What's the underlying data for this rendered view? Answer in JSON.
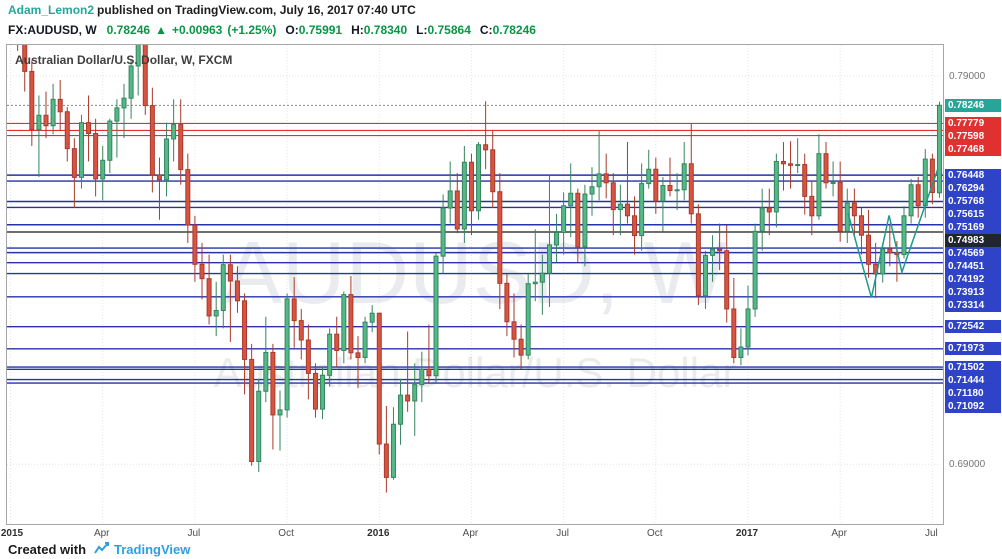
{
  "header": {
    "author": "Adam_Lemon2",
    "published_text": "published on TradingView.com, July 16, 2017 07:40 UTC"
  },
  "quote_bar": {
    "symbol": "FX:AUDUSD, W",
    "last": "0.78246",
    "change_arrow": "▲",
    "change_abs": "+0.00963",
    "change_pct": "(+1.25%)",
    "ohlc": [
      {
        "label": "O:",
        "value": "0.75991"
      },
      {
        "label": "H:",
        "value": "0.78340"
      },
      {
        "label": "L:",
        "value": "0.75864"
      },
      {
        "label": "C:",
        "value": "0.78246"
      }
    ]
  },
  "chart": {
    "title": "Australian Dollar/U.S. Dollar, W, FXCM",
    "watermark_line1": "AUDUSD, W",
    "watermark_line2": "Australian Dollar/U.S. Dollar"
  },
  "footer": {
    "created_with": "Created with",
    "brand": "TradingView"
  },
  "colors": {
    "up": "#53b987",
    "up_border": "#36845f",
    "down": "#d75442",
    "down_border": "#a93a2b",
    "level_red": "#e03030",
    "level_blue": "#2632a8",
    "level_dark": "#15191c",
    "chip_red": "#e03030",
    "chip_blue": "#2f43c8",
    "chip_dark": "#20262b",
    "chip_current": "#26a69a",
    "accent_teal": "#26a69a",
    "value_green": "#0a9446",
    "brand_blue": "#2e9fdf",
    "drawing": "#1f9a8e",
    "grid": "#e4e4e4",
    "current_line": "#888888",
    "watermark": "rgba(120,130,150,0.16)"
  },
  "chart_data": {
    "type": "candlestick",
    "symbol": "AUDUSD",
    "timeframe": "W",
    "exchange": "FXCM",
    "title": "Australian Dollar/U.S. Dollar, W, FXCM",
    "price_axis": {
      "top": 0.798,
      "bottom": 0.6746,
      "plain_ticks": [
        0.79,
        0.69
      ]
    },
    "time_ticks": [
      {
        "label": "2015",
        "index": 0,
        "major": true
      },
      {
        "label": "Apr",
        "index": 13,
        "major": false
      },
      {
        "label": "Jul",
        "index": 26,
        "major": false
      },
      {
        "label": "Oct",
        "index": 39,
        "major": false
      },
      {
        "label": "2016",
        "index": 52,
        "major": true
      },
      {
        "label": "Apr",
        "index": 65,
        "major": false
      },
      {
        "label": "Jul",
        "index": 78,
        "major": false
      },
      {
        "label": "Oct",
        "index": 91,
        "major": false
      },
      {
        "label": "2017",
        "index": 104,
        "major": true
      },
      {
        "label": "Apr",
        "index": 117,
        "major": false
      },
      {
        "label": "Jul",
        "index": 130,
        "major": false
      }
    ],
    "levels": [
      {
        "price": 0.78246,
        "kind": "current"
      },
      {
        "price": 0.77779,
        "kind": "red"
      },
      {
        "price": 0.77598,
        "kind": "red"
      },
      {
        "price": 0.77468,
        "kind": "red"
      },
      {
        "price": 0.76448,
        "kind": "blue"
      },
      {
        "price": 0.76294,
        "kind": "blue"
      },
      {
        "price": 0.75768,
        "kind": "blue"
      },
      {
        "price": 0.75615,
        "kind": "blue"
      },
      {
        "price": 0.75169,
        "kind": "blue"
      },
      {
        "price": 0.74983,
        "kind": "dark"
      },
      {
        "price": 0.74569,
        "kind": "blue"
      },
      {
        "price": 0.74451,
        "kind": "blue"
      },
      {
        "price": 0.74192,
        "kind": "blue"
      },
      {
        "price": 0.73913,
        "kind": "blue"
      },
      {
        "price": 0.73314,
        "kind": "blue"
      },
      {
        "price": 0.72542,
        "kind": "blue"
      },
      {
        "price": 0.71973,
        "kind": "blue"
      },
      {
        "price": 0.71502,
        "kind": "blue"
      },
      {
        "price": 0.71444,
        "kind": "blue"
      },
      {
        "price": 0.7118,
        "kind": "blue"
      },
      {
        "price": 0.71092,
        "kind": "blue"
      }
    ],
    "price_labels": [
      {
        "text": "0.79000",
        "price": 0.79,
        "kind": "plain"
      },
      {
        "text": "0.78246",
        "price": 0.78246,
        "kind": "current"
      },
      {
        "text": "0.77779",
        "price": 0.77779,
        "kind": "red"
      },
      {
        "text": "0.77598",
        "price": 0.77598,
        "kind": "red"
      },
      {
        "text": "0.77468",
        "price": 0.77468,
        "kind": "red"
      },
      {
        "text": "0.76448",
        "price": 0.76448,
        "kind": "blue"
      },
      {
        "text": "0.76294",
        "price": 0.76294,
        "kind": "blue"
      },
      {
        "text": "0.75768",
        "price": 0.75768,
        "kind": "blue"
      },
      {
        "text": "0.75615",
        "price": 0.75615,
        "kind": "blue"
      },
      {
        "text": "0.75169",
        "price": 0.75169,
        "kind": "blue"
      },
      {
        "text": "0.74983",
        "price": 0.74983,
        "kind": "dark"
      },
      {
        "text": "0.74569",
        "price": 0.74569,
        "kind": "blue"
      },
      {
        "text": "0.74451",
        "price": 0.74451,
        "kind": "blue"
      },
      {
        "text": "0.74192",
        "price": 0.74192,
        "kind": "blue"
      },
      {
        "text": "0.73913",
        "price": 0.73913,
        "kind": "blue"
      },
      {
        "text": "0.73314",
        "price": 0.73314,
        "kind": "blue"
      },
      {
        "text": "0.72542",
        "price": 0.72542,
        "kind": "blue"
      },
      {
        "text": "0.71973",
        "price": 0.71973,
        "kind": "blue"
      },
      {
        "text": "0.71502",
        "price": 0.71502,
        "kind": "blue"
      },
      {
        "text": "0.71444",
        "price": 0.71444,
        "kind": "blue"
      },
      {
        "text": "0.71180",
        "price": 0.7118,
        "kind": "blue"
      },
      {
        "text": "0.71092",
        "price": 0.71092,
        "kind": "blue"
      },
      {
        "text": "0.69000",
        "price": 0.69,
        "kind": "plain"
      }
    ],
    "drawing": {
      "type": "zigzag",
      "points": [
        [
          118.1,
          0.7547
        ],
        [
          121.4,
          0.7329
        ],
        [
          123.9,
          0.7541
        ],
        [
          125.7,
          0.7395
        ],
        [
          130.8,
          0.7662
        ]
      ]
    },
    "candles": [
      [
        0.8084,
        0.8137,
        0.8002,
        0.8049
      ],
      [
        0.8049,
        0.8085,
        0.7965,
        0.802
      ],
      [
        0.802,
        0.8035,
        0.786,
        0.7912
      ],
      [
        0.7912,
        0.794,
        0.772,
        0.7762
      ],
      [
        0.7762,
        0.785,
        0.764,
        0.7799
      ],
      [
        0.7799,
        0.786,
        0.774,
        0.7772
      ],
      [
        0.7772,
        0.788,
        0.775,
        0.784
      ],
      [
        0.784,
        0.789,
        0.776,
        0.7808
      ],
      [
        0.7808,
        0.782,
        0.768,
        0.7713
      ],
      [
        0.7713,
        0.774,
        0.756,
        0.7639
      ],
      [
        0.7639,
        0.78,
        0.761,
        0.778
      ],
      [
        0.778,
        0.785,
        0.768,
        0.7752
      ],
      [
        0.7752,
        0.779,
        0.759,
        0.7635
      ],
      [
        0.7635,
        0.772,
        0.758,
        0.7683
      ],
      [
        0.7683,
        0.779,
        0.765,
        0.7784
      ],
      [
        0.7784,
        0.784,
        0.769,
        0.7818
      ],
      [
        0.7818,
        0.788,
        0.774,
        0.7843
      ],
      [
        0.7843,
        0.794,
        0.779,
        0.7926
      ],
      [
        0.7926,
        0.816,
        0.785,
        0.8
      ],
      [
        0.8,
        0.804,
        0.78,
        0.7824
      ],
      [
        0.7824,
        0.787,
        0.76,
        0.7645
      ],
      [
        0.7645,
        0.769,
        0.753,
        0.7633
      ],
      [
        0.7633,
        0.778,
        0.759,
        0.7738
      ],
      [
        0.7738,
        0.784,
        0.768,
        0.7775
      ],
      [
        0.7775,
        0.784,
        0.762,
        0.7659
      ],
      [
        0.7659,
        0.77,
        0.747,
        0.7516
      ],
      [
        0.7516,
        0.754,
        0.737,
        0.7415
      ],
      [
        0.7415,
        0.747,
        0.7325,
        0.7378
      ],
      [
        0.7378,
        0.744,
        0.726,
        0.7282
      ],
      [
        0.7282,
        0.737,
        0.723,
        0.7296
      ],
      [
        0.7296,
        0.744,
        0.725,
        0.7414
      ],
      [
        0.7414,
        0.744,
        0.7215,
        0.7372
      ],
      [
        0.7372,
        0.741,
        0.729,
        0.7321
      ],
      [
        0.7321,
        0.734,
        0.708,
        0.717
      ],
      [
        0.717,
        0.721,
        0.6896,
        0.6907
      ],
      [
        0.6907,
        0.712,
        0.688,
        0.7088
      ],
      [
        0.7088,
        0.728,
        0.706,
        0.7188
      ],
      [
        0.7188,
        0.721,
        0.6938,
        0.7027
      ],
      [
        0.7027,
        0.709,
        0.6935,
        0.704
      ],
      [
        0.704,
        0.734,
        0.702,
        0.7326
      ],
      [
        0.7326,
        0.7382,
        0.72,
        0.727
      ],
      [
        0.727,
        0.73,
        0.717,
        0.722
      ],
      [
        0.722,
        0.726,
        0.7067,
        0.7134
      ],
      [
        0.7134,
        0.716,
        0.702,
        0.7042
      ],
      [
        0.7042,
        0.715,
        0.7016,
        0.7129
      ],
      [
        0.7129,
        0.725,
        0.71,
        0.7235
      ],
      [
        0.7235,
        0.728,
        0.715,
        0.7193
      ],
      [
        0.7193,
        0.7345,
        0.716,
        0.7337
      ],
      [
        0.7337,
        0.7385,
        0.717,
        0.7187
      ],
      [
        0.7187,
        0.723,
        0.7096,
        0.7175
      ],
      [
        0.7175,
        0.728,
        0.716,
        0.7266
      ],
      [
        0.7266,
        0.731,
        0.724,
        0.7289
      ],
      [
        0.7289,
        0.729,
        0.6925,
        0.6952
      ],
      [
        0.6952,
        0.705,
        0.6827,
        0.6866
      ],
      [
        0.6866,
        0.7047,
        0.686,
        0.7003
      ],
      [
        0.7003,
        0.712,
        0.695,
        0.7078
      ],
      [
        0.7078,
        0.7242,
        0.7035,
        0.7063
      ],
      [
        0.7063,
        0.716,
        0.6973,
        0.7105
      ],
      [
        0.7105,
        0.719,
        0.706,
        0.7145
      ],
      [
        0.7145,
        0.726,
        0.711,
        0.7128
      ],
      [
        0.7128,
        0.7443,
        0.711,
        0.7436
      ],
      [
        0.7436,
        0.7595,
        0.739,
        0.756
      ],
      [
        0.756,
        0.768,
        0.752,
        0.7604
      ],
      [
        0.7604,
        0.765,
        0.7495,
        0.7506
      ],
      [
        0.7506,
        0.772,
        0.747,
        0.7678
      ],
      [
        0.7678,
        0.77,
        0.749,
        0.7553
      ],
      [
        0.7553,
        0.773,
        0.753,
        0.7723
      ],
      [
        0.7723,
        0.7835,
        0.766,
        0.771
      ],
      [
        0.771,
        0.776,
        0.756,
        0.7602
      ],
      [
        0.7602,
        0.765,
        0.73,
        0.7366
      ],
      [
        0.7366,
        0.739,
        0.723,
        0.7267
      ],
      [
        0.7267,
        0.734,
        0.7175,
        0.7222
      ],
      [
        0.7222,
        0.726,
        0.7145,
        0.7181
      ],
      [
        0.7181,
        0.739,
        0.717,
        0.7365
      ],
      [
        0.7365,
        0.7505,
        0.732,
        0.7369
      ],
      [
        0.7369,
        0.744,
        0.7285,
        0.7392
      ],
      [
        0.7392,
        0.7647,
        0.7305,
        0.7465
      ],
      [
        0.7465,
        0.7545,
        0.742,
        0.7497
      ],
      [
        0.7497,
        0.76,
        0.744,
        0.7566
      ],
      [
        0.7566,
        0.7675,
        0.7485,
        0.7598
      ],
      [
        0.7598,
        0.761,
        0.742,
        0.746
      ],
      [
        0.746,
        0.762,
        0.741,
        0.7596
      ],
      [
        0.7596,
        0.7665,
        0.754,
        0.7615
      ],
      [
        0.7615,
        0.776,
        0.758,
        0.7648
      ],
      [
        0.7648,
        0.77,
        0.7585,
        0.7625
      ],
      [
        0.7625,
        0.765,
        0.749,
        0.7556
      ],
      [
        0.7556,
        0.762,
        0.749,
        0.757
      ],
      [
        0.757,
        0.773,
        0.752,
        0.754
      ],
      [
        0.754,
        0.759,
        0.744,
        0.7489
      ],
      [
        0.7489,
        0.7675,
        0.745,
        0.7623
      ],
      [
        0.7623,
        0.771,
        0.761,
        0.766
      ],
      [
        0.766,
        0.769,
        0.7545,
        0.7578
      ],
      [
        0.7578,
        0.764,
        0.75,
        0.7618
      ],
      [
        0.7618,
        0.769,
        0.759,
        0.7605
      ],
      [
        0.7605,
        0.765,
        0.7555,
        0.7607
      ],
      [
        0.7607,
        0.773,
        0.758,
        0.7674
      ],
      [
        0.7674,
        0.7777,
        0.752,
        0.7545
      ],
      [
        0.7545,
        0.757,
        0.731,
        0.7334
      ],
      [
        0.7334,
        0.745,
        0.73,
        0.7438
      ],
      [
        0.7438,
        0.749,
        0.737,
        0.7454
      ],
      [
        0.7454,
        0.752,
        0.74,
        0.745
      ],
      [
        0.745,
        0.7515,
        0.7265,
        0.73
      ],
      [
        0.73,
        0.738,
        0.716,
        0.7175
      ],
      [
        0.7175,
        0.725,
        0.7155,
        0.7202
      ],
      [
        0.7202,
        0.736,
        0.718,
        0.73
      ],
      [
        0.73,
        0.752,
        0.728,
        0.75
      ],
      [
        0.75,
        0.761,
        0.745,
        0.756
      ],
      [
        0.756,
        0.761,
        0.749,
        0.755
      ],
      [
        0.755,
        0.77,
        0.751,
        0.768
      ],
      [
        0.768,
        0.773,
        0.7605,
        0.7674
      ],
      [
        0.7674,
        0.7732,
        0.761,
        0.767
      ],
      [
        0.767,
        0.774,
        0.765,
        0.7672
      ],
      [
        0.7672,
        0.77,
        0.7543,
        0.759
      ],
      [
        0.759,
        0.763,
        0.749,
        0.754
      ],
      [
        0.754,
        0.775,
        0.753,
        0.77
      ],
      [
        0.77,
        0.773,
        0.761,
        0.7625
      ],
      [
        0.7625,
        0.768,
        0.759,
        0.7626
      ],
      [
        0.7626,
        0.768,
        0.7473,
        0.75
      ],
      [
        0.75,
        0.761,
        0.747,
        0.7573
      ],
      [
        0.7573,
        0.761,
        0.749,
        0.754
      ],
      [
        0.754,
        0.756,
        0.744,
        0.749
      ],
      [
        0.749,
        0.7555,
        0.738,
        0.7415
      ],
      [
        0.7415,
        0.747,
        0.7328,
        0.739
      ],
      [
        0.739,
        0.747,
        0.7368,
        0.7455
      ],
      [
        0.7455,
        0.752,
        0.741,
        0.7445
      ],
      [
        0.7445,
        0.7475,
        0.737,
        0.744
      ],
      [
        0.744,
        0.7565,
        0.743,
        0.754
      ],
      [
        0.754,
        0.7635,
        0.752,
        0.762
      ],
      [
        0.762,
        0.764,
        0.7535,
        0.7566
      ],
      [
        0.7566,
        0.7712,
        0.7535,
        0.7686
      ],
      [
        0.7686,
        0.77,
        0.757,
        0.76
      ],
      [
        0.75991,
        0.7834,
        0.75864,
        0.78246
      ]
    ]
  }
}
